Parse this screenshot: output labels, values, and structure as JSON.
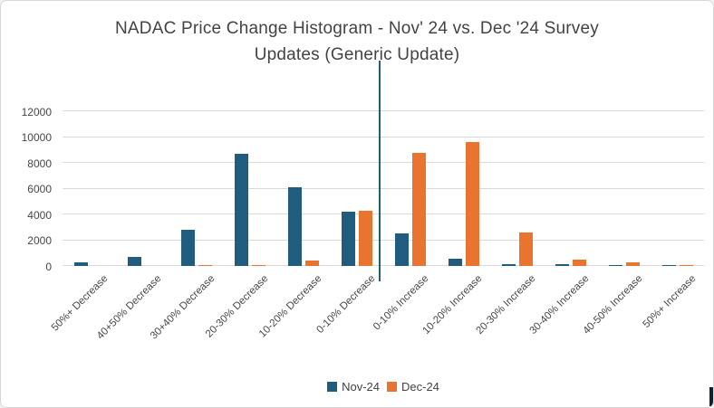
{
  "window": {
    "background": "#FFFFFF",
    "border_color": "#D7D7D7"
  },
  "title": {
    "line1": "NADAC Price Change Histogram - Nov' 24 vs. Dec '24 Survey",
    "line2": "Updates (Generic Update)"
  },
  "colors": {
    "nov": "#1F5C7D",
    "dec": "#E8742F",
    "gridline": "#D9D9D9",
    "divider": "#1F5C7D",
    "text": "#404347"
  },
  "legend": {
    "items": [
      {
        "label": "Nov-24",
        "color": "#1F5C7D"
      },
      {
        "label": "Dec-24",
        "color": "#E8742F"
      }
    ]
  },
  "chart_data": {
    "type": "bar",
    "title": "NADAC Price Change Histogram - Nov' 24 vs. Dec '24 Survey Updates (Generic Update)",
    "categories": [
      "50%+ Decrease",
      "40+50% Decrease",
      "30+40% Decrease",
      "20-30% Decrease",
      "10-20% Decrease",
      "0-10% Decrease",
      "0-10% Increase",
      "10-20% Increase",
      "20-30% Increase",
      "30-40% Increase",
      "40-50% Increase",
      "50%+ Increase"
    ],
    "series": [
      {
        "name": "Nov-24",
        "color": "#1F5C7D",
        "values": [
          250,
          700,
          2800,
          8700,
          6100,
          4200,
          2500,
          550,
          150,
          120,
          100,
          100
        ]
      },
      {
        "name": "Dec-24",
        "color": "#E8742F",
        "values": [
          0,
          0,
          100,
          100,
          400,
          4300,
          8800,
          9650,
          2600,
          500,
          250,
          80
        ]
      }
    ],
    "yticks": [
      0,
      2000,
      4000,
      6000,
      8000,
      10000,
      12000
    ],
    "ylim": [
      0,
      14600
    ],
    "grid": true,
    "legend_position": "bottom",
    "divider_between_categories": [
      "0-10% Decrease",
      "0-10% Increase"
    ]
  }
}
